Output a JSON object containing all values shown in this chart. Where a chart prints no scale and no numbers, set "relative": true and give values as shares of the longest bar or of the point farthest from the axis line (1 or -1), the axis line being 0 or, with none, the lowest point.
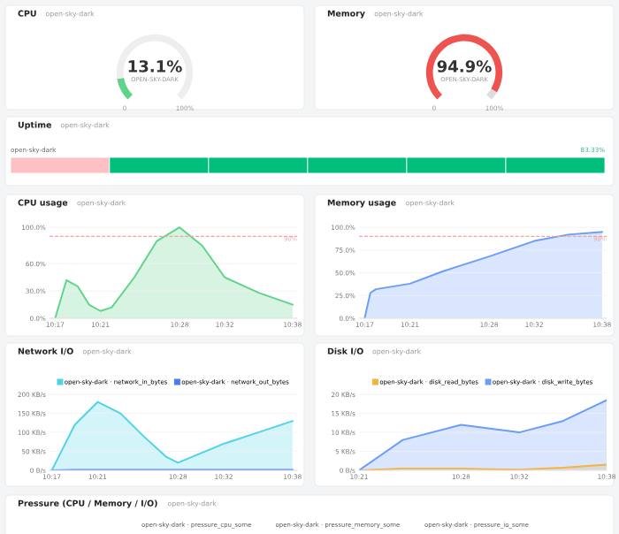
{
  "chart_data": [
    {
      "type": "donut",
      "title": "CPU",
      "subtitle": "open-sky-dark",
      "categories": [
        null,
        null
      ],
      "values": [
        13.1,
        86.9
      ],
      "colors": [
        "#5fd38a",
        "#eeeeee"
      ],
      "annotations": [
        "13.1%",
        "OPEN-SKY-DARK",
        "0",
        "100%"
      ]
    },
    {
      "type": "donut",
      "title": "Memory",
      "subtitle": "open-sky-dark",
      "categories": [
        null,
        null
      ],
      "values": [
        94.9,
        5.1
      ],
      "colors": [
        "#ef5350",
        "#dddddd"
      ],
      "annotations": [
        "94.9%",
        "OPEN-SKY-DARK",
        "0",
        "100%"
      ]
    },
    {
      "type": "bar",
      "title": "Uptime",
      "subtitle": "open-sky-dark",
      "orientation": "horizontal",
      "stacked": true,
      "relative": true,
      "categories": [
        null
      ],
      "series": [
        {
          "color": "#ffc0c4",
          "values": [
            0.1665
          ]
        },
        {
          "color": "#00be7c",
          "values": [
            0.1667
          ]
        },
        {
          "color": "#00be7c",
          "values": [
            0.1667
          ]
        },
        {
          "color": "#00be7c",
          "values": [
            0.1667
          ]
        },
        {
          "color": "#00be7c",
          "values": [
            0.1667
          ]
        },
        {
          "color": "#00be7c",
          "values": [
            0.1667
          ]
        }
      ],
      "annotations": [
        "open-sky-dark",
        "83.33%"
      ]
    },
    {
      "type": "area",
      "title": "CPU usage",
      "subtitle": "open-sky-dark",
      "grid": "y",
      "legend": false,
      "x": [
        10.2833,
        10.3,
        10.3167,
        10.3333,
        10.35,
        10.3667,
        10.4,
        10.4333,
        10.4667,
        10.5,
        10.5333,
        10.5833,
        10.6333
      ],
      "series": [
        {
          "color": "#5fd38a",
          "values": [
            0,
            42,
            35,
            15,
            8,
            12,
            45,
            85,
            100,
            80,
            45,
            28,
            15
          ]
        }
      ],
      "xlim": [
        10.275,
        10.64
      ],
      "ylim": [
        0,
        105
      ],
      "xticks": [
        {
          "value": 10.2833,
          "label": "10:17"
        },
        {
          "value": 10.35,
          "label": "10:21"
        },
        {
          "value": 10.4667,
          "label": "10:28"
        },
        {
          "value": 10.5333,
          "label": "10:32"
        },
        {
          "value": 10.6333,
          "label": "10:38"
        }
      ],
      "yticks": [
        {
          "value": 0,
          "label": "0.0%"
        },
        {
          "value": 30,
          "label": "30.0%"
        },
        {
          "value": 60,
          "label": "60.0%"
        },
        {
          "value": 100,
          "label": "100.0%"
        }
      ],
      "ref_lines": [
        {
          "axis": "y",
          "value": 90,
          "label": "90%",
          "color": "#f4a3a3",
          "line_style": "dashed"
        }
      ]
    },
    {
      "type": "area",
      "title": "Memory usage",
      "subtitle": "open-sky-dark",
      "grid": "y",
      "legend": false,
      "x": [
        10.2833,
        10.2917,
        10.3,
        10.35,
        10.4,
        10.4667,
        10.5333,
        10.5833,
        10.6333
      ],
      "series": [
        {
          "color": "#6b9cf7",
          "values": [
            0,
            28,
            32,
            38,
            52,
            68,
            85,
            92,
            95
          ]
        }
      ],
      "xlim": [
        10.275,
        10.64
      ],
      "ylim": [
        0,
        105
      ],
      "xticks": [
        {
          "value": 10.2833,
          "label": "10:17"
        },
        {
          "value": 10.35,
          "label": "10:21"
        },
        {
          "value": 10.4667,
          "label": "10:28"
        },
        {
          "value": 10.5333,
          "label": "10:32"
        },
        {
          "value": 10.6333,
          "label": "10:38"
        }
      ],
      "yticks": [
        {
          "value": 0,
          "label": "0.0%"
        },
        {
          "value": 25,
          "label": "25.0%"
        },
        {
          "value": 50,
          "label": "50.0%"
        },
        {
          "value": 75,
          "label": "75.0%"
        },
        {
          "value": 100,
          "label": "100.0%"
        }
      ],
      "ref_lines": [
        {
          "axis": "y",
          "value": 90,
          "label": "90%",
          "color": "#f4a3a3",
          "line_style": "dashed"
        }
      ]
    },
    {
      "type": "area",
      "title": "Network I/O",
      "subtitle": "open-sky-dark",
      "grid": "y",
      "legend": "top",
      "x": [
        10.2833,
        10.3167,
        10.35,
        10.3833,
        10.4167,
        10.45,
        10.4667,
        10.5,
        10.5333,
        10.5833,
        10.6333
      ],
      "series": [
        {
          "name": "open-sky-dark · network_in_bytes",
          "color": "#4fd3e6",
          "values": [
            0,
            120,
            180,
            150,
            90,
            35,
            20,
            45,
            70,
            100,
            130
          ]
        },
        {
          "name": "open-sky-dark · network_out_bytes",
          "color": "#4a7cf0",
          "values": [
            0,
            1,
            1,
            1,
            1,
            1,
            1,
            1,
            1,
            1,
            1
          ]
        }
      ],
      "xlim": [
        10.28,
        10.64
      ],
      "ylim": [
        0,
        205
      ],
      "xticks": [
        {
          "value": 10.2833,
          "label": "10:17"
        },
        {
          "value": 10.35,
          "label": "10:21"
        },
        {
          "value": 10.4667,
          "label": "10:28"
        },
        {
          "value": 10.5333,
          "label": "10:32"
        },
        {
          "value": 10.6333,
          "label": "10:38"
        }
      ],
      "yticks": [
        {
          "value": 0,
          "label": "0 B/s"
        },
        {
          "value": 50,
          "label": "50 KB/s"
        },
        {
          "value": 100,
          "label": "100 KB/s"
        },
        {
          "value": 150,
          "label": "150 KB/s"
        },
        {
          "value": 200,
          "label": "200 KB/s"
        }
      ]
    },
    {
      "type": "area",
      "title": "Disk I/O",
      "subtitle": "open-sky-dark",
      "grid": "y",
      "legend": "top",
      "x": [
        10.35,
        10.4,
        10.4667,
        10.5,
        10.5333,
        10.5833,
        10.6333
      ],
      "series": [
        {
          "name": "open-sky-dark · disk_read_bytes",
          "color": "#f5b33f",
          "values": [
            0,
            0.5,
            0.5,
            0.3,
            0.2,
            0.7,
            1.5
          ]
        },
        {
          "name": "open-sky-dark · disk_write_bytes",
          "color": "#6b9cf7",
          "values": [
            0,
            8,
            12,
            11,
            10,
            13,
            18.5
          ]
        }
      ],
      "xlim": [
        10.35,
        10.6333
      ],
      "ylim": [
        0,
        20.5
      ],
      "xticks": [
        {
          "value": 10.35,
          "label": "10:21"
        },
        {
          "value": 10.4667,
          "label": "10:28"
        },
        {
          "value": 10.5333,
          "label": "10:32"
        },
        {
          "value": 10.6333,
          "label": "10:38"
        }
      ],
      "yticks": [
        {
          "value": 0,
          "label": "0 B/s"
        },
        {
          "value": 5,
          "label": "5 KB/s"
        },
        {
          "value": 10,
          "label": "10 KB/s"
        },
        {
          "value": 15,
          "label": "15 KB/s"
        },
        {
          "value": 20,
          "label": "20 KB/s"
        }
      ]
    },
    {
      "type": "other",
      "title": "Pressure (CPU / Memory / I/O)",
      "subtitle": "open-sky-dark",
      "annotations": [
        "open-sky-dark · pressure_cpu_some",
        "open-sky-dark · pressure_memory_some",
        "open-sky-dark · pressure_io_some"
      ]
    }
  ]
}
